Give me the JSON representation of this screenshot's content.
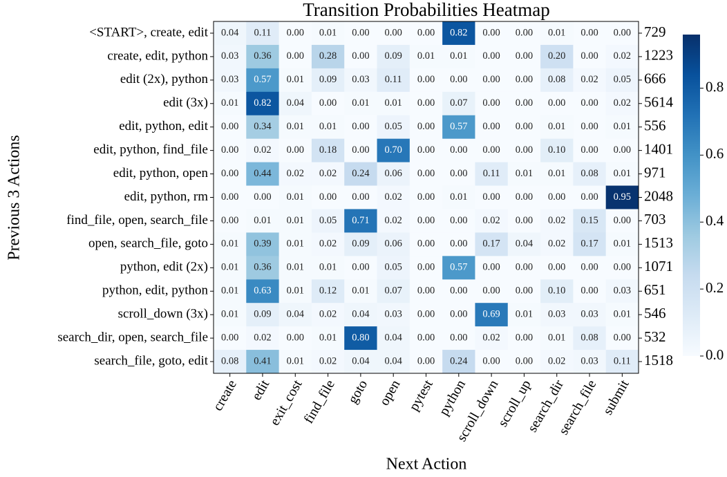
{
  "chart_data": {
    "type": "heatmap",
    "title": "Transition Probabilities Heatmap",
    "xlabel": "Next Action",
    "ylabel": "Previous 3 Actions",
    "columns": [
      "create",
      "edit",
      "exit_cost",
      "find_file",
      "goto",
      "open",
      "pytest",
      "python",
      "scroll_down",
      "scroll_up",
      "search_dir",
      "search_file",
      "submit"
    ],
    "rows": [
      "<START>, create, edit",
      "create, edit, python",
      "edit (2x), python",
      "edit (3x)",
      "edit, python, edit",
      "edit, python, find_file",
      "edit, python, open",
      "edit, python, rm",
      "find_file, open, search_file",
      "open, search_file, goto",
      "python, edit (2x)",
      "python, edit, python",
      "scroll_down (3x)",
      "search_dir, open, search_file",
      "search_file, goto, edit"
    ],
    "values": [
      [
        0.04,
        0.11,
        0,
        0.01,
        0,
        0,
        0,
        0.82,
        0,
        0,
        0.01,
        0,
        0
      ],
      [
        0.03,
        0.36,
        0,
        0.28,
        0,
        0.09,
        0.01,
        0.01,
        0,
        0,
        0.2,
        0,
        0.02
      ],
      [
        0.03,
        0.57,
        0.01,
        0.09,
        0.03,
        0.11,
        0,
        0,
        0,
        0,
        0.08,
        0.02,
        0.05
      ],
      [
        0.01,
        0.82,
        0.04,
        0,
        0.01,
        0.01,
        0,
        0.07,
        0,
        0,
        0,
        0,
        0.02
      ],
      [
        0,
        0.34,
        0.01,
        0.01,
        0,
        0.05,
        0,
        0.57,
        0,
        0,
        0.01,
        0,
        0.01
      ],
      [
        0,
        0.02,
        0,
        0.18,
        0,
        0.7,
        0,
        0,
        0,
        0,
        0.1,
        0,
        0
      ],
      [
        0,
        0.44,
        0.02,
        0.02,
        0.24,
        0.06,
        0,
        0,
        0.11,
        0.01,
        0.01,
        0.08,
        0.01
      ],
      [
        0,
        0,
        0.01,
        0,
        0,
        0.02,
        0,
        0.01,
        0,
        0,
        0,
        0,
        0.95
      ],
      [
        0,
        0.01,
        0.01,
        0.05,
        0.71,
        0.02,
        0,
        0,
        0.02,
        0,
        0.02,
        0.15,
        0
      ],
      [
        0.01,
        0.39,
        0.01,
        0.02,
        0.09,
        0.06,
        0,
        0,
        0.17,
        0.04,
        0.02,
        0.17,
        0.01
      ],
      [
        0.01,
        0.36,
        0.01,
        0.01,
        0,
        0.05,
        0,
        0.57,
        0,
        0,
        0,
        0,
        0
      ],
      [
        0.01,
        0.63,
        0.01,
        0.12,
        0.01,
        0.07,
        0,
        0,
        0,
        0,
        0.1,
        0,
        0.03
      ],
      [
        0.01,
        0.09,
        0.04,
        0.02,
        0.04,
        0.03,
        0,
        0,
        0.69,
        0.01,
        0.03,
        0.03,
        0.01
      ],
      [
        0,
        0.02,
        0,
        0.01,
        0.8,
        0.04,
        0,
        0,
        0.02,
        0,
        0.01,
        0.08,
        0
      ],
      [
        0.08,
        0.41,
        0.01,
        0.02,
        0.04,
        0.04,
        0,
        0.24,
        0,
        0,
        0.02,
        0.03,
        0.11
      ]
    ],
    "value_labels": [
      [
        "0.04",
        "0.11",
        "0.00",
        "0.01",
        "0.00",
        "0.00",
        "0.00",
        "0.82",
        "0.00",
        "0.00",
        "0.01",
        "0.00",
        "0.00"
      ],
      [
        "0.03",
        "0.36",
        "0.00",
        "0.28",
        "0.00",
        "0.09",
        "0.01",
        "0.01",
        "0.00",
        "0.00",
        "0.20",
        "0.00",
        "0.02"
      ],
      [
        "0.03",
        "0.57",
        "0.01",
        "0.09",
        "0.03",
        "0.11",
        "0.00",
        "0.00",
        "0.00",
        "0.00",
        "0.08",
        "0.02",
        "0.05"
      ],
      [
        "0.01",
        "0.82",
        "0.04",
        "0.00",
        "0.01",
        "0.01",
        "0.00",
        "0.07",
        "0.00",
        "0.00",
        "0.00",
        "0.00",
        "0.02"
      ],
      [
        "0.00",
        "0.34",
        "0.01",
        "0.01",
        "0.00",
        "0.05",
        "0.00",
        "0.57",
        "0.00",
        "0.00",
        "0.01",
        "0.00",
        "0.01"
      ],
      [
        "0.00",
        "0.02",
        "0.00",
        "0.18",
        "0.00",
        "0.70",
        "0.00",
        "0.00",
        "0.00",
        "0.00",
        "0.10",
        "0.00",
        "0.00"
      ],
      [
        "0.00",
        "0.44",
        "0.02",
        "0.02",
        "0.24",
        "0.06",
        "0.00",
        "0.00",
        "0.11",
        "0.01",
        "0.01",
        "0.08",
        "0.01"
      ],
      [
        "0.00",
        "0.00",
        "0.01",
        "0.00",
        "0.00",
        "0.02",
        "0.00",
        "0.01",
        "0.00",
        "0.00",
        "0.00",
        "0.00",
        "0.95"
      ],
      [
        "0.00",
        "0.01",
        "0.01",
        "0.05",
        "0.71",
        "0.02",
        "0.00",
        "0.00",
        "0.02",
        "0.00",
        "0.02",
        "0.15",
        "0.00"
      ],
      [
        "0.01",
        "0.39",
        "0.01",
        "0.02",
        "0.09",
        "0.06",
        "0.00",
        "0.00",
        "0.17",
        "0.04",
        "0.02",
        "0.17",
        "0.01"
      ],
      [
        "0.01",
        "0.36",
        "0.01",
        "0.01",
        "0.00",
        "0.05",
        "0.00",
        "0.57",
        "0.00",
        "0.00",
        "0.00",
        "0.00",
        "0.00"
      ],
      [
        "0.01",
        "0.63",
        "0.01",
        "0.12",
        "0.01",
        "0.07",
        "0.00",
        "0.00",
        "0.00",
        "0.00",
        "0.10",
        "0.00",
        "0.03"
      ],
      [
        "0.01",
        "0.09",
        "0.04",
        "0.02",
        "0.04",
        "0.03",
        "0.00",
        "0.00",
        "0.69",
        "0.01",
        "0.03",
        "0.03",
        "0.01"
      ],
      [
        "0.00",
        "0.02",
        "0.00",
        "0.01",
        "0.80",
        "0.04",
        "0.00",
        "0.00",
        "0.02",
        "0.00",
        "0.01",
        "0.08",
        "0.00"
      ],
      [
        "0.08",
        "0.41",
        "0.01",
        "0.02",
        "0.04",
        "0.04",
        "0.00",
        "0.24",
        "0.00",
        "0.00",
        "0.02",
        "0.03",
        "0.11"
      ]
    ],
    "counts": [
      729,
      1223,
      666,
      5614,
      556,
      1401,
      971,
      2048,
      703,
      1513,
      1071,
      651,
      546,
      532,
      1518
    ],
    "zlim": [
      0,
      0.96
    ],
    "zticks": [
      {
        "value": 0,
        "label": "0.0"
      },
      0.2,
      0.4,
      0.6,
      0.8
    ],
    "colors": [
      "#f7fbff",
      "#deebf7",
      "#c6dbef",
      "#9ecae1",
      "#6baed6",
      "#4292c6",
      "#2171b5",
      "#08519c",
      "#08306b"
    ]
  }
}
